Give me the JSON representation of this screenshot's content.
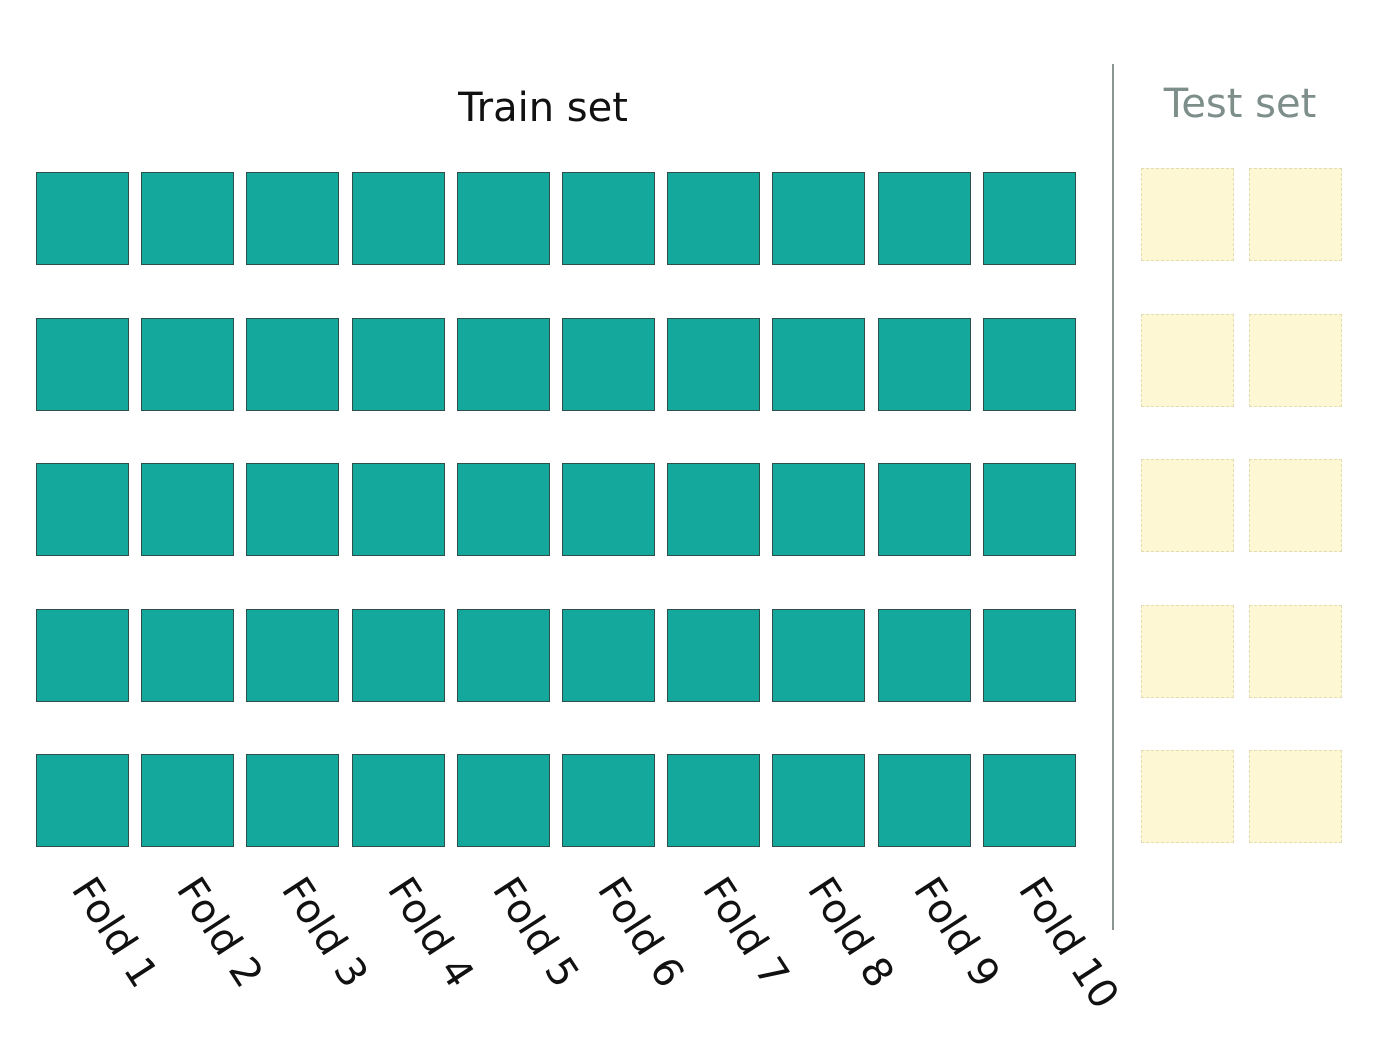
{
  "train": {
    "title": "Train set",
    "rows": 5,
    "folds": [
      "Fold 1",
      "Fold 2",
      "Fold 3",
      "Fold 4",
      "Fold 5",
      "Fold 6",
      "Fold 7",
      "Fold 8",
      "Fold 9",
      "Fold 10"
    ]
  },
  "test": {
    "title": "Test set",
    "rows": 5,
    "columns": 2
  },
  "colors": {
    "train_fill": "#14a89c",
    "test_fill": "#fdf8d3",
    "divider": "#8a9491",
    "train_title": "#111111",
    "test_title": "#7e8e8b",
    "fold_label": "#111111"
  }
}
